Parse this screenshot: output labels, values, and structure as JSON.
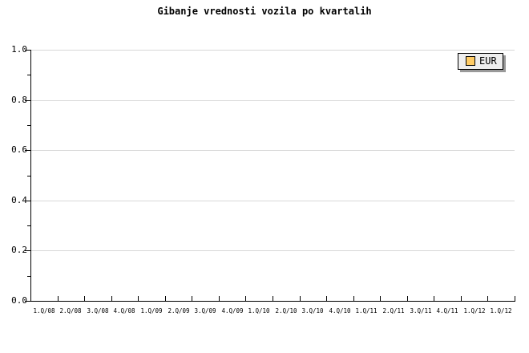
{
  "title": "Gibanje vrednosti vozila po kvartalih",
  "legend": {
    "position": "top-right",
    "items": [
      {
        "label": "EUR",
        "swatch_color": "#FFCC66"
      }
    ]
  },
  "colors": {
    "background": "#ffffff",
    "axis": "#000000",
    "grid": "#d8d8d8",
    "text": "#000000",
    "legend_fill": "#eeeeee",
    "legend_border": "#000000",
    "legend_shadow": "#999999"
  },
  "chart_data": {
    "type": "line",
    "title": "Gibanje vrednosti vozila po kvartalih",
    "xlabel": "",
    "ylabel": "",
    "categories": [
      "1.Q/08",
      "2.Q/08",
      "3.Q/08",
      "4.Q/08",
      "1.Q/09",
      "2.Q/09",
      "3.Q/09",
      "4.Q/09",
      "1.Q/10",
      "2.Q/10",
      "3.Q/10",
      "4.Q/10",
      "1.Q/11",
      "2.Q/11",
      "3.Q/11",
      "4.Q/11",
      "1.Q/12",
      "1.Q/12"
    ],
    "series": [
      {
        "name": "EUR",
        "color": "#FFCC66",
        "values": []
      }
    ],
    "plot_is_empty": true,
    "ylim": [
      0.0,
      1.0
    ],
    "y_major_ticks": [
      0.0,
      0.2,
      0.4,
      0.6,
      0.8,
      1.0
    ],
    "y_tick_labels": [
      "0.0",
      "0.2",
      "0.4",
      "0.6",
      "0.8",
      "1.0"
    ],
    "y_minor_tick_step": 0.1,
    "grid": "horizontal-major-only",
    "legend_position": "top-right"
  }
}
